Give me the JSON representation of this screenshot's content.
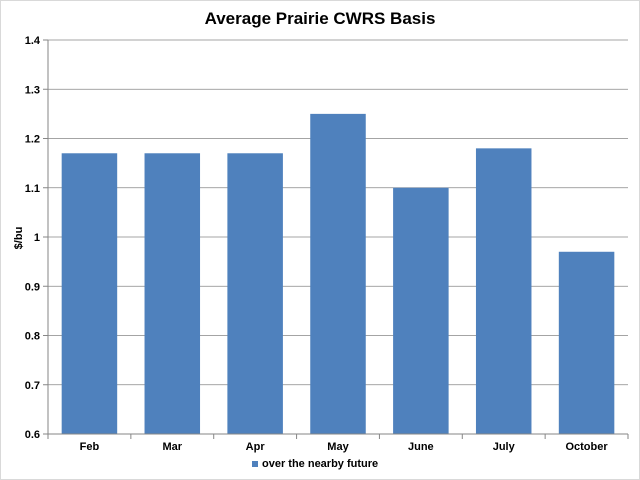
{
  "chart_data": {
    "type": "bar",
    "title": "Average Prairie CWRS Basis",
    "xlabel": "",
    "ylabel": "$/bu",
    "categories": [
      "Feb",
      "Mar",
      "Apr",
      "May",
      "June",
      "July",
      "October"
    ],
    "series": [
      {
        "name": "over the nearby future",
        "values": [
          1.17,
          1.17,
          1.17,
          1.25,
          1.1,
          1.18,
          0.97
        ],
        "color": "#4f81bd"
      }
    ],
    "ylim": [
      0.6,
      1.4
    ],
    "yticks": [
      0.6,
      0.7,
      0.8,
      0.9,
      1.0,
      1.1,
      1.2,
      1.3,
      1.4
    ],
    "ytick_labels": [
      "0.6",
      "0.7",
      "0.8",
      "0.9",
      "1",
      "1.1",
      "1.2",
      "1.3",
      "1.4"
    ],
    "grid": true,
    "legend_position": "bottom"
  }
}
